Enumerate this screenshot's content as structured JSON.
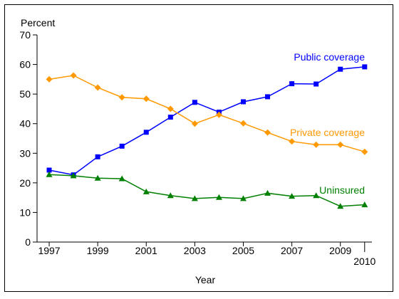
{
  "chart_data": {
    "type": "line",
    "title": "",
    "ylabel": "Percent",
    "xlabel": "Year",
    "ylim": [
      0,
      70
    ],
    "yticks": [
      0,
      10,
      20,
      30,
      40,
      50,
      60,
      70
    ],
    "xlim": [
      1997,
      2010
    ],
    "xticks": [
      {
        "value": 1997,
        "label": "1997"
      },
      {
        "value": 1999,
        "label": "1999"
      },
      {
        "value": 2001,
        "label": "2001"
      },
      {
        "value": 2003,
        "label": "2003"
      },
      {
        "value": 2005,
        "label": "2005"
      },
      {
        "value": 2007,
        "label": "2007"
      },
      {
        "value": 2009,
        "label": "2009"
      },
      {
        "value": 2010,
        "label": "2010"
      }
    ],
    "grid": false,
    "legend": "inline labels",
    "x": [
      1997,
      1998,
      1999,
      2000,
      2001,
      2002,
      2003,
      2004,
      2005,
      2006,
      2007,
      2008,
      2009,
      2010
    ],
    "series": [
      {
        "name": "Public coverage",
        "color": "#0000ff",
        "marker": "square",
        "values": [
          24.3,
          22.7,
          28.8,
          32.4,
          37.1,
          42.2,
          47.2,
          43.9,
          47.4,
          49.1,
          53.5,
          53.4,
          58.4,
          59.2
        ]
      },
      {
        "name": "Private coverage",
        "color": "#ff9900",
        "marker": "diamond",
        "values": [
          55.0,
          56.3,
          52.2,
          48.9,
          48.4,
          45.0,
          40.0,
          43.0,
          40.1,
          37.0,
          34.0,
          32.9,
          32.9,
          30.5
        ]
      },
      {
        "name": "Uninsured",
        "color": "#008000",
        "marker": "triangle",
        "values": [
          22.8,
          22.4,
          21.6,
          21.4,
          17.0,
          15.7,
          14.7,
          15.1,
          14.7,
          16.5,
          15.5,
          15.7,
          12.1,
          12.6
        ]
      }
    ]
  }
}
